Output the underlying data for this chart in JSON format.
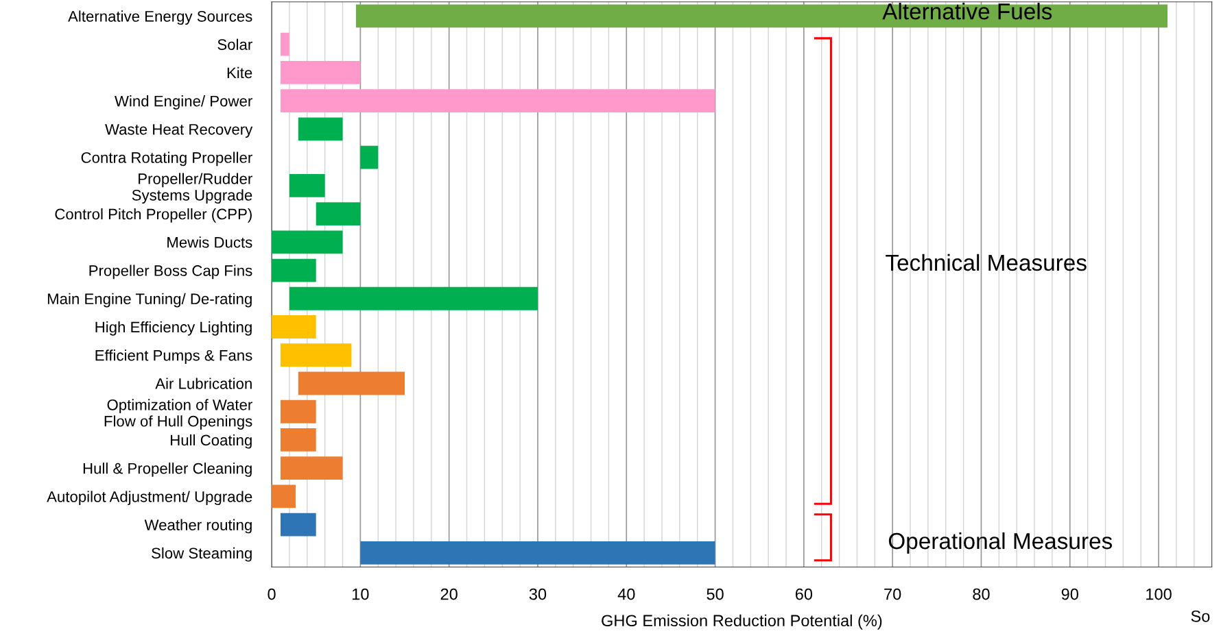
{
  "chart_data": {
    "type": "bar",
    "orientation": "horizontal",
    "categories": [
      "Alternative Energy Sources",
      "Solar",
      "Kite",
      "Wind Engine/ Power",
      "Waste Heat Recovery",
      "Contra Rotating Propeller",
      "Propeller/Rudder\nSystems Upgrade",
      "Control Pitch Propeller (CPP)",
      "Mewis Ducts",
      "Propeller Boss Cap Fins",
      "Main Engine Tuning/ De-rating",
      "High Efficiency Lighting",
      "Efficient Pumps & Fans",
      "Air Lubrication",
      "Optimization of Water\nFlow of Hull Openings",
      "Hull Coating",
      "Hull & Propeller Cleaning",
      "Autopilot Adjustment/ Upgrade",
      "Weather routing",
      "Slow Steaming"
    ],
    "base": [
      9.5,
      1,
      1,
      1,
      3,
      10,
      2,
      5,
      0,
      0,
      2,
      0,
      1,
      3,
      1,
      1,
      1,
      0,
      1,
      10
    ],
    "values": [
      91.5,
      1,
      9,
      49,
      5,
      2,
      4,
      5,
      8,
      5,
      28,
      5,
      8,
      12,
      4,
      4,
      7,
      2.7,
      4,
      40
    ],
    "colors": [
      "#70ad47",
      "#ff99cc",
      "#ff99cc",
      "#ff99cc",
      "#00b050",
      "#00b050",
      "#00b050",
      "#00b050",
      "#00b050",
      "#00b050",
      "#00b050",
      "#ffc000",
      "#ffc000",
      "#ed7d31",
      "#ed7d31",
      "#ed7d31",
      "#ed7d31",
      "#ed7d31",
      "#2e75b6",
      "#2e75b6"
    ],
    "xlabel": "GHG Emission Reduction Potential (%)",
    "xlim": [
      0,
      106
    ],
    "xticks": [
      0,
      10,
      20,
      30,
      40,
      50,
      60,
      70,
      80,
      90,
      100
    ],
    "grid": "x",
    "annotations": [
      "Alternative Fuels",
      "Technical Measures",
      "Operational Measures",
      "So"
    ]
  }
}
